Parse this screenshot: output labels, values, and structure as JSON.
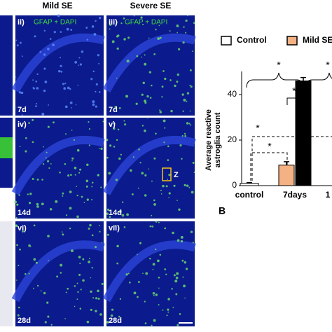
{
  "headers": [
    "Mild SE",
    "Severe SE"
  ],
  "panels": [
    {
      "label": "ii)",
      "stain": "GFAP + DAPI",
      "time": "7d"
    },
    {
      "label": "iii)",
      "stain": "GFAP + DAPI",
      "time": "7d"
    },
    {
      "label": "iv)",
      "time": "14d"
    },
    {
      "label": "v)",
      "time": "14d",
      "box": "Z"
    },
    {
      "label": "vi)",
      "time": "28d"
    },
    {
      "label": "vii)",
      "time": "28d"
    }
  ],
  "chart_data": {
    "type": "bar",
    "panel_label": "B",
    "y_label": [
      "Average reactive",
      "astroglia count"
    ],
    "categories": [
      "control",
      "7days",
      "1"
    ],
    "series": [
      {
        "name": "Control",
        "color": "#ffffff",
        "values": [
          1,
          null,
          null
        ],
        "errors": [
          0.3,
          null,
          null
        ]
      },
      {
        "name": "Mild SE",
        "color": "#f4b183",
        "values": [
          null,
          9,
          null
        ],
        "errors": [
          null,
          1.5,
          null
        ]
      },
      {
        "color": "#000000",
        "values": [
          null,
          46,
          null
        ],
        "errors": [
          null,
          1.5,
          null
        ]
      }
    ],
    "ylim": [
      0,
      50
    ],
    "yticks": [
      0,
      20,
      40
    ],
    "annotations": [
      "*",
      "*",
      "*",
      "*",
      "*"
    ]
  }
}
